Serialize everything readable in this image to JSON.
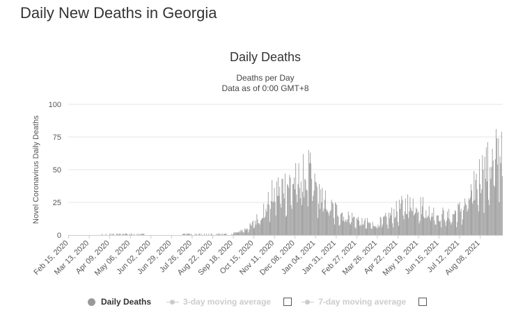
{
  "page": {
    "title": "Daily New Deaths in Georgia"
  },
  "colors": {
    "bar": "#999999",
    "grid": "#e6e6e6",
    "axis": "#cccccc",
    "legend_off": "#cccccc"
  },
  "legend": {
    "daily": "Daily Deaths",
    "avg3": "3-day moving average",
    "avg7": "7-day moving average"
  },
  "chart_data": {
    "type": "bar",
    "title": "Daily Deaths",
    "subtitle": [
      "Deaths per Day",
      "Data as of 0:00 GMT+8"
    ],
    "ylabel": "Novel Coronavirus Daily Deaths",
    "xlabel": "",
    "ylim": [
      0,
      100
    ],
    "yticks": [
      0,
      25,
      50,
      75,
      100
    ],
    "start_date": "2020-02-15",
    "num_days": 570,
    "x_tick_labels": [
      "Feb 15, 2020",
      "Mar 13, 2020",
      "Apr 09, 2020",
      "May 06, 2020",
      "Jun 02, 2020",
      "Jun 29, 2020",
      "Jul 26, 2020",
      "Aug 22, 2020",
      "Sep 18, 2020",
      "Oct 15, 2020",
      "Nov 11, 2020",
      "Dec 08, 2020",
      "Jan 04, 2021",
      "Jan 31, 2021",
      "Feb 27, 2021",
      "Mar 26, 2021",
      "Apr 22, 2021",
      "May 19, 2021",
      "Jun 15, 2021",
      "Jul 12, 2021",
      "Aug 08, 2021"
    ],
    "x_tick_interval_days": 27,
    "series_keyframes": [
      [
        0,
        0
      ],
      [
        40,
        0
      ],
      [
        50,
        0.6
      ],
      [
        70,
        0.6
      ],
      [
        80,
        0.2
      ],
      [
        120,
        0.1
      ],
      [
        180,
        0.2
      ],
      [
        210,
        0.5
      ],
      [
        220,
        2
      ],
      [
        230,
        4
      ],
      [
        240,
        7
      ],
      [
        250,
        14
      ],
      [
        260,
        22
      ],
      [
        270,
        32
      ],
      [
        280,
        36
      ],
      [
        290,
        38
      ],
      [
        300,
        40
      ],
      [
        310,
        44
      ],
      [
        315,
        46
      ],
      [
        325,
        35
      ],
      [
        335,
        26
      ],
      [
        345,
        20
      ],
      [
        360,
        16
      ],
      [
        375,
        12
      ],
      [
        390,
        9
      ],
      [
        400,
        8
      ],
      [
        410,
        10
      ],
      [
        420,
        13
      ],
      [
        430,
        18
      ],
      [
        440,
        22
      ],
      [
        450,
        25
      ],
      [
        460,
        23
      ],
      [
        470,
        19
      ],
      [
        480,
        16
      ],
      [
        490,
        15
      ],
      [
        500,
        14
      ],
      [
        510,
        17
      ],
      [
        520,
        22
      ],
      [
        530,
        32
      ],
      [
        540,
        45
      ],
      [
        550,
        50
      ],
      [
        560,
        57
      ],
      [
        565,
        62
      ],
      [
        569,
        66
      ]
    ],
    "series_peaks": [
      [
        544,
        50
      ],
      [
        553,
        52
      ],
      [
        560,
        58
      ],
      [
        564,
        74
      ],
      [
        568,
        79
      ],
      [
        566,
        60
      ]
    ],
    "legend": [
      "Daily Deaths",
      "3-day moving average",
      "7-day moving average"
    ]
  }
}
